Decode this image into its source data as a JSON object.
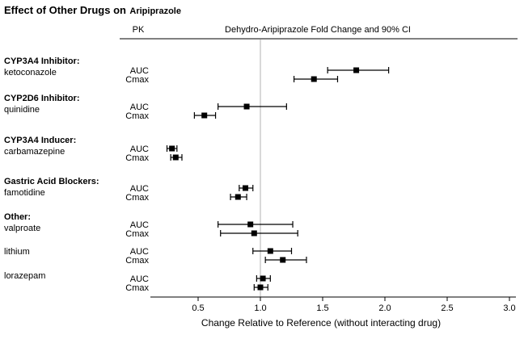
{
  "title": {
    "main": "Effect of Other Drugs on",
    "drug": "Aripiprazole"
  },
  "chart_data": {
    "type": "forest",
    "pk_header": "PK",
    "column_header": "Dehydro-Aripiprazole Fold Change and 90% CI",
    "xlabel": "Change Relative to Reference (without interacting drug)",
    "x_ticks": [
      0.5,
      1.0,
      1.5,
      2.0,
      2.5,
      3.0
    ],
    "xlim": [
      0.1,
      3.05
    ],
    "reference_line": 1.0,
    "ci_level": "90% CI",
    "groups": [
      {
        "header": "CYP3A4 Inhibitor:",
        "drug": "ketoconazole",
        "rows": [
          {
            "pk": "AUC",
            "value": 1.77,
            "ci_low": 1.54,
            "ci_high": 2.03
          },
          {
            "pk": "Cmax",
            "value": 1.43,
            "ci_low": 1.27,
            "ci_high": 1.62
          }
        ]
      },
      {
        "header": "CYP2D6 Inhibitor:",
        "drug": "quinidine",
        "rows": [
          {
            "pk": "AUC",
            "value": 0.89,
            "ci_low": 0.66,
            "ci_high": 1.21
          },
          {
            "pk": "Cmax",
            "value": 0.55,
            "ci_low": 0.47,
            "ci_high": 0.64
          }
        ]
      },
      {
        "header": "CYP3A4 Inducer:",
        "drug": "carbamazepine",
        "rows": [
          {
            "pk": "AUC",
            "value": 0.29,
            "ci_low": 0.25,
            "ci_high": 0.33
          },
          {
            "pk": "Cmax",
            "value": 0.32,
            "ci_low": 0.28,
            "ci_high": 0.37
          }
        ]
      },
      {
        "header": "Gastric Acid Blockers:",
        "drug": "famotidine",
        "rows": [
          {
            "pk": "AUC",
            "value": 0.88,
            "ci_low": 0.83,
            "ci_high": 0.94
          },
          {
            "pk": "Cmax",
            "value": 0.82,
            "ci_low": 0.76,
            "ci_high": 0.89
          }
        ]
      },
      {
        "header": "Other:",
        "drug": "valproate",
        "rows": [
          {
            "pk": "AUC",
            "value": 0.92,
            "ci_low": 0.66,
            "ci_high": 1.26
          },
          {
            "pk": "Cmax",
            "value": 0.95,
            "ci_low": 0.68,
            "ci_high": 1.3
          }
        ]
      },
      {
        "header": "",
        "drug": "lithium",
        "rows": [
          {
            "pk": "AUC",
            "value": 1.08,
            "ci_low": 0.94,
            "ci_high": 1.25
          },
          {
            "pk": "Cmax",
            "value": 1.18,
            "ci_low": 1.04,
            "ci_high": 1.37
          }
        ]
      },
      {
        "header": "",
        "drug": "lorazepam",
        "rows": [
          {
            "pk": "AUC",
            "value": 1.02,
            "ci_low": 0.97,
            "ci_high": 1.08
          },
          {
            "pk": "Cmax",
            "value": 1.0,
            "ci_low": 0.95,
            "ci_high": 1.06
          }
        ]
      }
    ]
  }
}
